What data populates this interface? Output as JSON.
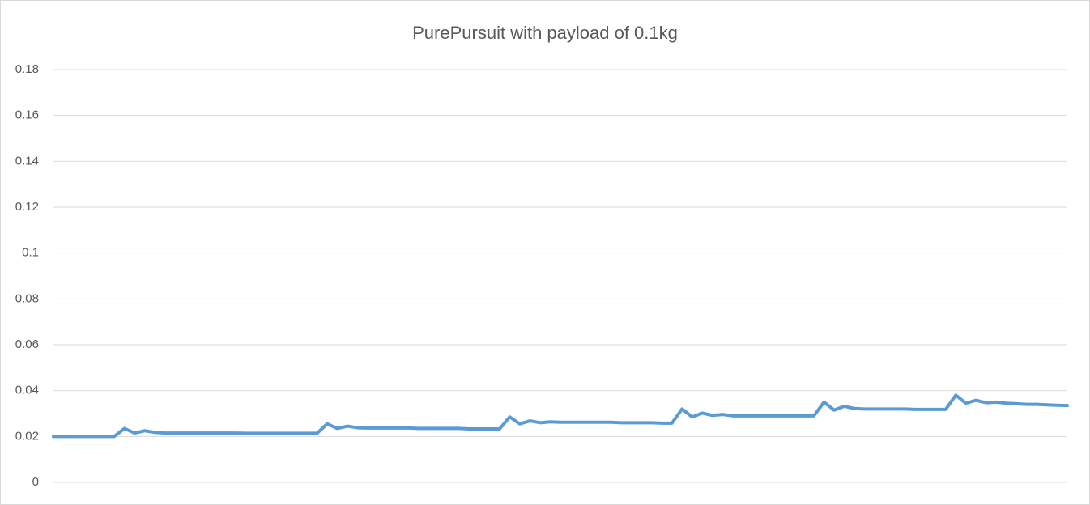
{
  "chart_data": {
    "type": "line",
    "title": "PurePursuit with payload of 0.1kg",
    "series": [
      {
        "color": "#5b9bd5",
        "values": [
          0.02,
          0.02,
          0.02,
          0.02,
          0.02,
          0.02,
          0.02,
          0.0235,
          0.0215,
          0.0225,
          0.0218,
          0.0215,
          0.0215,
          0.0215,
          0.0215,
          0.0215,
          0.0215,
          0.0215,
          0.0215,
          0.0214,
          0.0214,
          0.0214,
          0.0214,
          0.0214,
          0.0214,
          0.0214,
          0.0214,
          0.0255,
          0.0235,
          0.0245,
          0.0238,
          0.0237,
          0.0237,
          0.0237,
          0.0237,
          0.0237,
          0.0235,
          0.0235,
          0.0235,
          0.0235,
          0.0235,
          0.0233,
          0.0233,
          0.0233,
          0.0233,
          0.0285,
          0.0255,
          0.0268,
          0.026,
          0.0264,
          0.0262,
          0.0262,
          0.0262,
          0.0262,
          0.0262,
          0.0262,
          0.026,
          0.026,
          0.026,
          0.026,
          0.0258,
          0.0258,
          0.032,
          0.0285,
          0.0302,
          0.0292,
          0.0296,
          0.029,
          0.029,
          0.029,
          0.029,
          0.029,
          0.029,
          0.029,
          0.029,
          0.029,
          0.035,
          0.0315,
          0.0332,
          0.0322,
          0.032,
          0.032,
          0.032,
          0.032,
          0.032,
          0.0318,
          0.0318,
          0.0318,
          0.0318,
          0.038,
          0.0345,
          0.0358,
          0.0347,
          0.035,
          0.0345,
          0.0343,
          0.034,
          0.034,
          0.0338,
          0.0336,
          0.0335
        ]
      }
    ],
    "ylim": [
      0,
      0.18
    ],
    "yticks": [
      0,
      0.02,
      0.04,
      0.06,
      0.08,
      0.1,
      0.12,
      0.14,
      0.16,
      0.18
    ],
    "grid": true
  }
}
